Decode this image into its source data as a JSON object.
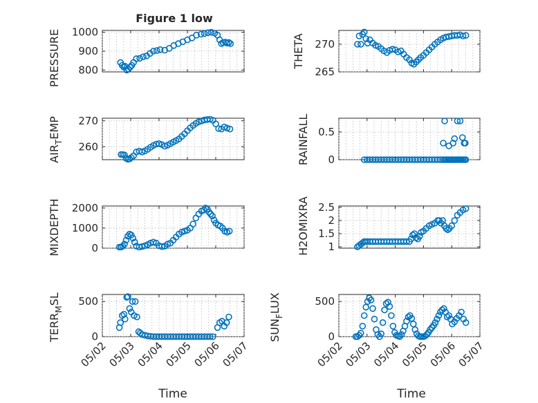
{
  "figure_title": "Figure 1 low",
  "colors": {
    "marker": "#0072BD",
    "axes": "#262626",
    "grid": "#b8b8b8"
  },
  "chart_data": [
    {
      "type": "scatter",
      "ylabel": "PRESSURE",
      "xlabel": "",
      "ylim": [
        790,
        1010
      ],
      "yticks": [
        800,
        900,
        1000
      ],
      "xlim": [
        0,
        5
      ],
      "grid": "on",
      "x": [
        0.64,
        0.7,
        0.76,
        0.8,
        0.86,
        0.92,
        0.98,
        1.04,
        1.1,
        1.2,
        1.32,
        1.44,
        1.56,
        1.68,
        1.8,
        1.92,
        2.04,
        2.2,
        2.36,
        2.52,
        2.68,
        2.84,
        3.0,
        3.16,
        3.32,
        3.48,
        3.6,
        3.72,
        3.84,
        3.96,
        4.06,
        4.14,
        4.2,
        4.26,
        4.34,
        4.4,
        4.46,
        4.52
      ],
      "y": [
        840,
        825,
        815,
        820,
        800,
        805,
        815,
        825,
        840,
        860,
        862,
        870,
        875,
        888,
        900,
        903,
        908,
        905,
        915,
        930,
        940,
        950,
        960,
        970,
        985,
        990,
        993,
        998,
        1000,
        995,
        985,
        960,
        940,
        945,
        948,
        942,
        946,
        940
      ]
    },
    {
      "type": "scatter",
      "ylabel": "THETA",
      "xlabel": "",
      "ylim": [
        265,
        272.5
      ],
      "yticks": [
        265,
        270
      ],
      "xlim": [
        0,
        5
      ],
      "grid": "on",
      "x": [
        0.66,
        0.72,
        0.78,
        0.84,
        0.9,
        0.96,
        1.02,
        1.1,
        1.2,
        1.3,
        1.4,
        1.5,
        1.6,
        1.7,
        1.8,
        1.9,
        2.0,
        2.1,
        2.2,
        2.3,
        2.4,
        2.5,
        2.58,
        2.66,
        2.74,
        2.82,
        2.9,
        3.0,
        3.1,
        3.2,
        3.3,
        3.4,
        3.5,
        3.6,
        3.7,
        3.8,
        3.9,
        4.0,
        4.1,
        4.2,
        4.3,
        4.4,
        4.5
      ],
      "y": [
        270,
        271.5,
        270,
        271.8,
        272.2,
        271,
        270.2,
        270.8,
        270.2,
        269.8,
        269.6,
        269.2,
        268.8,
        268.5,
        268.9,
        269.1,
        269,
        268.6,
        268.8,
        268.2,
        267.6,
        267.2,
        266.6,
        266.4,
        266.8,
        267.2,
        267.6,
        268,
        268.5,
        269,
        269.5,
        270,
        270.4,
        270.8,
        271.1,
        271.3,
        271.4,
        271.5,
        271.6,
        271.6,
        271.7,
        271.5,
        271.6
      ]
    },
    {
      "type": "scatter",
      "ylabel": "AIR_TEMP",
      "xlabel": "",
      "ylim": [
        255,
        271
      ],
      "yticks": [
        260,
        270
      ],
      "xlim": [
        0,
        5
      ],
      "grid": "on",
      "x": [
        0.66,
        0.72,
        0.78,
        0.84,
        0.9,
        0.96,
        1.02,
        1.1,
        1.2,
        1.3,
        1.4,
        1.5,
        1.6,
        1.7,
        1.8,
        1.9,
        2.0,
        2.1,
        2.2,
        2.3,
        2.4,
        2.5,
        2.6,
        2.7,
        2.8,
        2.9,
        3.0,
        3.1,
        3.2,
        3.3,
        3.4,
        3.5,
        3.6,
        3.7,
        3.8,
        3.9,
        4.0,
        4.1,
        4.2,
        4.3,
        4.4,
        4.5
      ],
      "y": [
        257,
        257,
        256.8,
        255.5,
        255.2,
        255.3,
        255.8,
        256.5,
        258,
        258.3,
        258,
        258.4,
        259,
        259.8,
        260.5,
        261,
        261.2,
        260.8,
        260.2,
        260.6,
        261.2,
        261.8,
        262.4,
        263,
        264,
        265,
        266.2,
        267.3,
        268.2,
        269,
        269.6,
        270,
        270.3,
        270.5,
        270.6,
        270.2,
        268.8,
        267,
        266.8,
        267.6,
        267.2,
        266.8
      ]
    },
    {
      "type": "scatter",
      "ylabel": "RAINFALL",
      "xlabel": "",
      "ylim": [
        0,
        0.75
      ],
      "yticks": [
        0,
        0.5
      ],
      "xlim": [
        0,
        5
      ],
      "grid": "on",
      "x": [
        0.9,
        1.0,
        1.1,
        1.2,
        1.3,
        1.4,
        1.5,
        1.6,
        1.7,
        1.8,
        1.9,
        2.0,
        2.1,
        2.2,
        2.3,
        2.4,
        2.5,
        2.6,
        2.7,
        2.8,
        2.9,
        3.0,
        3.1,
        3.2,
        3.3,
        3.4,
        3.5,
        3.6,
        3.68,
        3.74,
        3.8,
        3.85,
        3.9,
        3.95,
        4.0,
        4.05,
        4.1,
        4.15,
        4.2,
        4.25,
        4.3,
        4.35,
        4.4,
        4.45,
        4.5,
        3.7,
        3.75,
        3.9,
        4.05,
        4.1,
        4.2,
        4.3,
        4.38,
        4.44,
        4.48
      ],
      "y": [
        0,
        0,
        0,
        0,
        0,
        0,
        0,
        0,
        0,
        0,
        0,
        0,
        0,
        0,
        0,
        0,
        0,
        0,
        0,
        0,
        0,
        0,
        0,
        0,
        0,
        0,
        0,
        0,
        0,
        0,
        0,
        0,
        0,
        0,
        0,
        0,
        0,
        0,
        0,
        0,
        0,
        0,
        0,
        0,
        0,
        0.3,
        0.7,
        0.25,
        0.3,
        0.38,
        0.7,
        0.7,
        0.4,
        0.3,
        0.3
      ]
    },
    {
      "type": "scatter",
      "ylabel": "MIXDEPTH",
      "xlabel": "",
      "ylim": [
        0,
        2100
      ],
      "yticks": [
        0,
        1000,
        2000
      ],
      "xlim": [
        0,
        5
      ],
      "grid": "on",
      "x": [
        0.6,
        0.66,
        0.72,
        0.78,
        0.84,
        0.9,
        0.96,
        1.02,
        1.08,
        1.14,
        1.2,
        1.3,
        1.4,
        1.5,
        1.6,
        1.7,
        1.8,
        1.9,
        2.0,
        2.1,
        2.2,
        2.3,
        2.4,
        2.5,
        2.6,
        2.7,
        2.8,
        2.9,
        3.0,
        3.1,
        3.2,
        3.3,
        3.4,
        3.5,
        3.58,
        3.64,
        3.7,
        3.76,
        3.82,
        3.88,
        3.94,
        4.0,
        4.08,
        4.16,
        4.24,
        4.32,
        4.4,
        4.48
      ],
      "y": [
        50,
        60,
        100,
        200,
        400,
        600,
        700,
        650,
        500,
        300,
        100,
        50,
        80,
        120,
        180,
        250,
        300,
        250,
        120,
        80,
        100,
        200,
        250,
        400,
        550,
        700,
        800,
        850,
        900,
        1000,
        1200,
        1500,
        1700,
        1850,
        1900,
        2000,
        1950,
        1800,
        1700,
        1600,
        1400,
        1250,
        1150,
        1100,
        1000,
        850,
        800,
        850
      ]
    },
    {
      "type": "scatter",
      "ylabel": "H2OMIXRA",
      "xlabel": "",
      "ylim": [
        0.95,
        2.55
      ],
      "yticks": [
        1,
        1.5,
        2,
        2.5
      ],
      "xlim": [
        0,
        5
      ],
      "grid": "on",
      "x": [
        0.66,
        0.72,
        0.78,
        0.84,
        0.9,
        0.96,
        1.02,
        1.1,
        1.2,
        1.3,
        1.4,
        1.5,
        1.6,
        1.7,
        1.8,
        1.9,
        2.0,
        2.1,
        2.2,
        2.3,
        2.4,
        2.5,
        2.56,
        2.62,
        2.68,
        2.74,
        2.8,
        2.86,
        2.92,
        3.0,
        3.1,
        3.2,
        3.3,
        3.4,
        3.5,
        3.56,
        3.62,
        3.68,
        3.74,
        3.8,
        3.86,
        3.92,
        4.0,
        4.1,
        4.2,
        4.3,
        4.4,
        4.5
      ],
      "y": [
        1.0,
        1.05,
        1.1,
        1.15,
        1.2,
        1.2,
        1.2,
        1.2,
        1.2,
        1.2,
        1.2,
        1.2,
        1.2,
        1.2,
        1.2,
        1.2,
        1.2,
        1.2,
        1.2,
        1.2,
        1.2,
        1.2,
        1.3,
        1.45,
        1.5,
        1.35,
        1.3,
        1.4,
        1.55,
        1.6,
        1.7,
        1.8,
        1.85,
        1.9,
        2.0,
        2.0,
        1.9,
        2.0,
        1.8,
        1.7,
        1.65,
        1.7,
        1.8,
        2.0,
        2.2,
        2.3,
        2.4,
        2.45
      ]
    },
    {
      "type": "scatter",
      "ylabel": "TERR_MSL",
      "xlabel": "Time",
      "ylim": [
        0,
        600
      ],
      "yticks": [
        0,
        500
      ],
      "xlim": [
        0,
        5
      ],
      "xticks": [
        "05/02",
        "05/03",
        "05/04",
        "05/05",
        "05/06",
        "05/07"
      ],
      "grid": "on",
      "x": [
        0.6,
        0.64,
        0.7,
        0.76,
        0.8,
        0.86,
        0.9,
        0.96,
        1.02,
        1.06,
        1.12,
        1.16,
        1.22,
        1.28,
        1.34,
        1.4,
        1.5,
        1.6,
        1.7,
        1.8,
        1.9,
        2.0,
        2.1,
        2.2,
        2.3,
        2.4,
        2.5,
        2.6,
        2.7,
        2.8,
        2.9,
        3.0,
        3.1,
        3.2,
        3.3,
        3.4,
        3.5,
        3.6,
        3.7,
        3.8,
        3.9,
        4.06,
        4.14,
        4.22,
        4.3,
        4.38,
        4.46
      ],
      "y": [
        130,
        200,
        300,
        320,
        250,
        560,
        570,
        400,
        350,
        500,
        300,
        500,
        280,
        70,
        50,
        30,
        20,
        10,
        5,
        0,
        0,
        0,
        0,
        0,
        0,
        0,
        0,
        0,
        0,
        0,
        0,
        0,
        0,
        0,
        0,
        0,
        0,
        0,
        0,
        0,
        0,
        130,
        200,
        220,
        150,
        200,
        280
      ]
    },
    {
      "type": "scatter",
      "ylabel": "SUN_FLUX",
      "xlabel": "Time",
      "ylim": [
        0,
        600
      ],
      "yticks": [
        0,
        500
      ],
      "xlim": [
        0,
        5
      ],
      "xticks": [
        "05/02",
        "05/03",
        "05/04",
        "05/05",
        "05/06",
        "05/07"
      ],
      "grid": "on",
      "x": [
        0.6,
        0.66,
        0.72,
        0.78,
        0.84,
        0.9,
        0.96,
        1.02,
        1.08,
        1.14,
        1.2,
        1.26,
        1.32,
        1.38,
        1.44,
        1.5,
        1.56,
        1.62,
        1.68,
        1.74,
        1.8,
        1.86,
        1.92,
        1.98,
        2.04,
        2.1,
        2.16,
        2.22,
        2.28,
        2.34,
        2.4,
        2.46,
        2.52,
        2.58,
        2.64,
        2.7,
        2.76,
        2.82,
        2.88,
        2.94,
        3.0,
        3.06,
        3.12,
        3.18,
        3.24,
        3.3,
        3.36,
        3.42,
        3.48,
        3.54,
        3.6,
        3.66,
        3.72,
        3.78,
        3.84,
        3.9,
        3.96,
        4.02,
        4.1,
        4.18,
        4.26,
        4.34,
        4.42,
        4.5
      ],
      "y": [
        0,
        0,
        20,
        50,
        150,
        300,
        420,
        500,
        550,
        520,
        400,
        250,
        100,
        30,
        0,
        40,
        200,
        380,
        470,
        490,
        430,
        300,
        150,
        60,
        20,
        10,
        0,
        30,
        80,
        150,
        220,
        280,
        300,
        260,
        180,
        100,
        40,
        10,
        0,
        0,
        0,
        10,
        30,
        60,
        100,
        130,
        160,
        200,
        250,
        300,
        350,
        380,
        400,
        350,
        280,
        300,
        250,
        180,
        210,
        260,
        300,
        350,
        250,
        200
      ]
    }
  ]
}
